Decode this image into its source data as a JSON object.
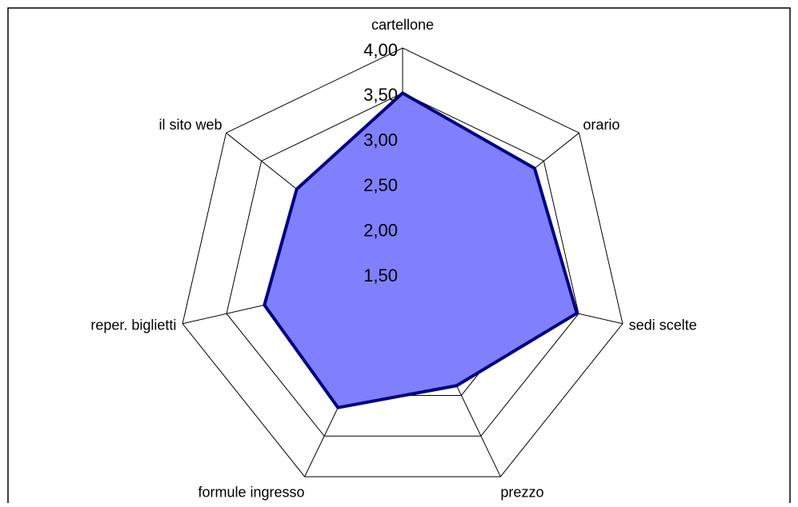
{
  "chart_data": {
    "type": "radar",
    "categories": [
      "cartellone",
      "orario",
      "sedi scelte",
      "prezzo",
      "formule ingresso",
      "reper. biglietti",
      "il sito web"
    ],
    "series": [
      {
        "color": "#8080ff",
        "values": [
          3.5,
          3.37,
          3.48,
          2.88,
          3.15,
          3.07,
          3.0
        ]
      }
    ],
    "ylim": [
      1.5,
      4.0
    ],
    "yticks": [
      {
        "value": 1.5,
        "label": "1,50"
      },
      {
        "value": 2.0,
        "label": "2,00"
      },
      {
        "value": 2.5,
        "label": "2,50"
      },
      {
        "value": 3.0,
        "label": "3,00"
      },
      {
        "value": 3.5,
        "label": "3,50"
      },
      {
        "value": 4.0,
        "label": "4,00"
      }
    ],
    "grid": true
  }
}
